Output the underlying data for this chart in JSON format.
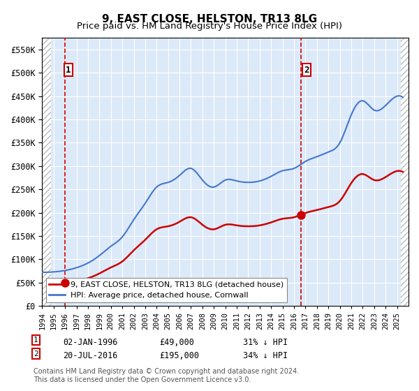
{
  "title": "9, EAST CLOSE, HELSTON, TR13 8LG",
  "subtitle": "Price paid vs. HM Land Registry's House Price Index (HPI)",
  "xlim": [
    1994.0,
    2026.0
  ],
  "ylim": [
    0,
    575000
  ],
  "yticks": [
    0,
    50000,
    100000,
    150000,
    200000,
    250000,
    300000,
    350000,
    400000,
    450000,
    500000,
    550000
  ],
  "ytick_labels": [
    "£0",
    "£50K",
    "£100K",
    "£150K",
    "£200K",
    "£250K",
    "£300K",
    "£350K",
    "£400K",
    "£450K",
    "£500K",
    "£550K"
  ],
  "background_color": "#dce9f8",
  "hatch_color": "#c0c0c0",
  "grid_color": "#ffffff",
  "transaction1": {
    "year": 1996.0,
    "value": 49000,
    "label": "1"
  },
  "transaction2": {
    "year": 2016.58,
    "value": 195000,
    "label": "2"
  },
  "legend_items": [
    {
      "label": "9, EAST CLOSE, HELSTON, TR13 8LG (detached house)",
      "color": "#cc0000"
    },
    {
      "label": "HPI: Average price, detached house, Cornwall",
      "color": "#4477cc"
    }
  ],
  "annotation1": {
    "date": "02-JAN-1996",
    "price": "£49,000",
    "hpi": "31% ↓ HPI"
  },
  "annotation2": {
    "date": "20-JUL-2016",
    "price": "£195,000",
    "hpi": "34% ↓ HPI"
  },
  "footer": "Contains HM Land Registry data © Crown copyright and database right 2024.\nThis data is licensed under the Open Government Licence v3.0.",
  "title_fontsize": 11,
  "subtitle_fontsize": 10
}
